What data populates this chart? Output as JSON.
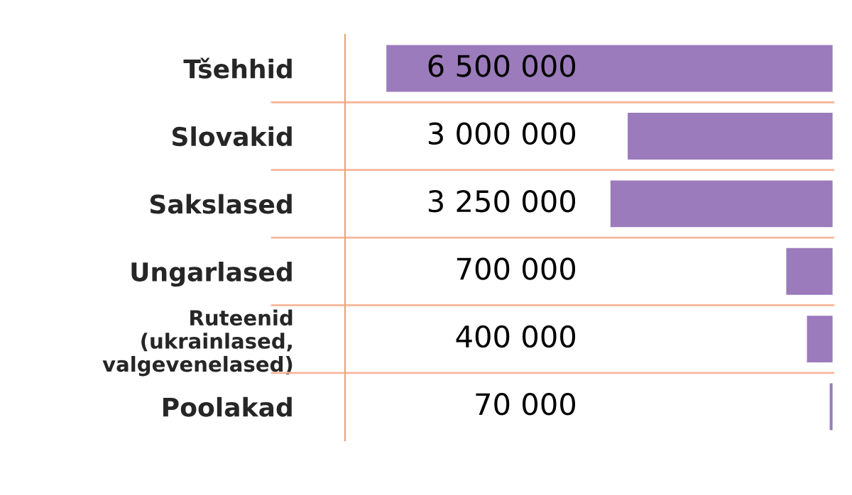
{
  "chart_data": {
    "type": "bar",
    "orientation": "horizontal",
    "categories": [
      "Tšehhid",
      "Slovakid",
      "Sakslased",
      "Ungarlased",
      "Ruteenid\n(ukrainlased,\nvalgevenelased)",
      "Poolakad"
    ],
    "values": [
      6500000,
      3000000,
      3250000,
      700000,
      400000,
      70000
    ],
    "value_labels": [
      "6 500 000",
      "3 000 000",
      "3 250 000",
      "700 000",
      "400 000",
      "70 000"
    ],
    "color": "#9b7bbb",
    "tick_labels": "y"
  }
}
